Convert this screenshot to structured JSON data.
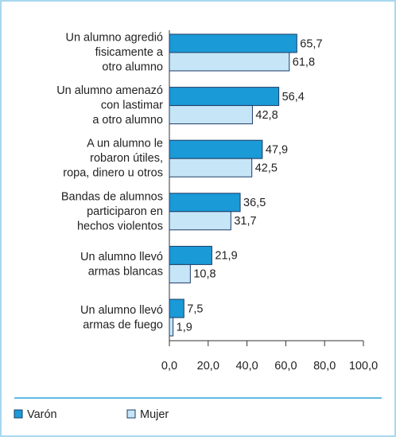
{
  "chart_data": {
    "type": "bar",
    "orientation": "horizontal",
    "categories": [
      "Un alumno agredió\nfisicamente a\notro alumno",
      "Un alumno amenazó\ncon lastimar\na otro alumno",
      "A un alumno le\nrobaron útiles,\nropa, dinero u otros",
      "Bandas de alumnos\nparticiparon en\nhechos violentos",
      "Un alumno llevó\narmas blancas",
      "Un alumno llevó\narmas de fuego"
    ],
    "series": [
      {
        "name": "Varón",
        "color": "#1a9ad6",
        "values": [
          65.7,
          56.4,
          47.9,
          36.5,
          21.9,
          7.5
        ],
        "value_labels": [
          "65,7",
          "56,4",
          "47,9",
          "36,5",
          "21,9",
          "7,5"
        ]
      },
      {
        "name": "Mujer",
        "color": "#c6e6f8",
        "values": [
          61.8,
          42.8,
          42.5,
          31.7,
          10.8,
          1.9
        ],
        "value_labels": [
          "61,8",
          "42,8",
          "42,5",
          "31,7",
          "10,8",
          "1,9"
        ]
      }
    ],
    "xlim": [
      0,
      100
    ],
    "xticks": [
      {
        "value": 0,
        "label": "0,0"
      },
      {
        "value": 20,
        "label": "20,0"
      },
      {
        "value": 40,
        "label": "40,0"
      },
      {
        "value": 60,
        "label": "60,0"
      },
      {
        "value": 80,
        "label": "80,0"
      },
      {
        "value": 100,
        "label": "100,0"
      }
    ],
    "legend": "bottom-left"
  }
}
